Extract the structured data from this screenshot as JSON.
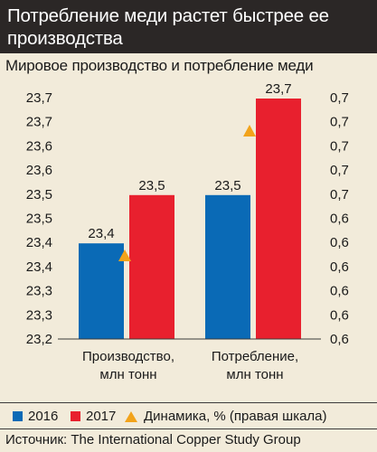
{
  "header": {
    "title": "Потребление меди растет быстрее ее производства"
  },
  "subtitle": "Мировое производство и потребление меди",
  "legend": {
    "series_2016": "2016",
    "series_2017": "2017",
    "dynamics": "Динамика, % (правая шкала)"
  },
  "source": "Источник: The International Copper Study Group",
  "colors": {
    "blue": "#0a6ab6",
    "red": "#e8202e",
    "orange": "#f2a31b",
    "header_bg": "#2b2726",
    "page_bg": "#f2ebda"
  },
  "chart_data": {
    "type": "bar",
    "categories": [
      "Производство,\nмлн тонн",
      "Потребление,\nмлн тонн"
    ],
    "series": [
      {
        "name": "2016",
        "values": [
          23.4,
          23.5
        ],
        "data_labels": [
          "23,4",
          "23,5"
        ]
      },
      {
        "name": "2017",
        "values": [
          23.5,
          23.7
        ],
        "data_labels": [
          "23,5",
          "23,7"
        ]
      }
    ],
    "dynamics": {
      "name": "Динамика, % (правая шкала)",
      "axis": "right",
      "values": [
        0.6,
        0.7
      ]
    },
    "left_axis": {
      "ylim": [
        23.2,
        23.7
      ],
      "tick_labels": [
        "23,2",
        "23,3",
        "23,3",
        "23,4",
        "23,4",
        "23,5",
        "23,5",
        "23,6",
        "23,6",
        "23,7",
        "23,7"
      ]
    },
    "right_axis": {
      "ylim": [
        0.6,
        0.7
      ],
      "tick_labels": [
        "0,6",
        "0,6",
        "0,6",
        "0,6",
        "0,6",
        "0,6",
        "0,7",
        "0,7",
        "0,7",
        "0,7",
        "0,7"
      ]
    },
    "grid": false,
    "legend_position": "bottom"
  }
}
